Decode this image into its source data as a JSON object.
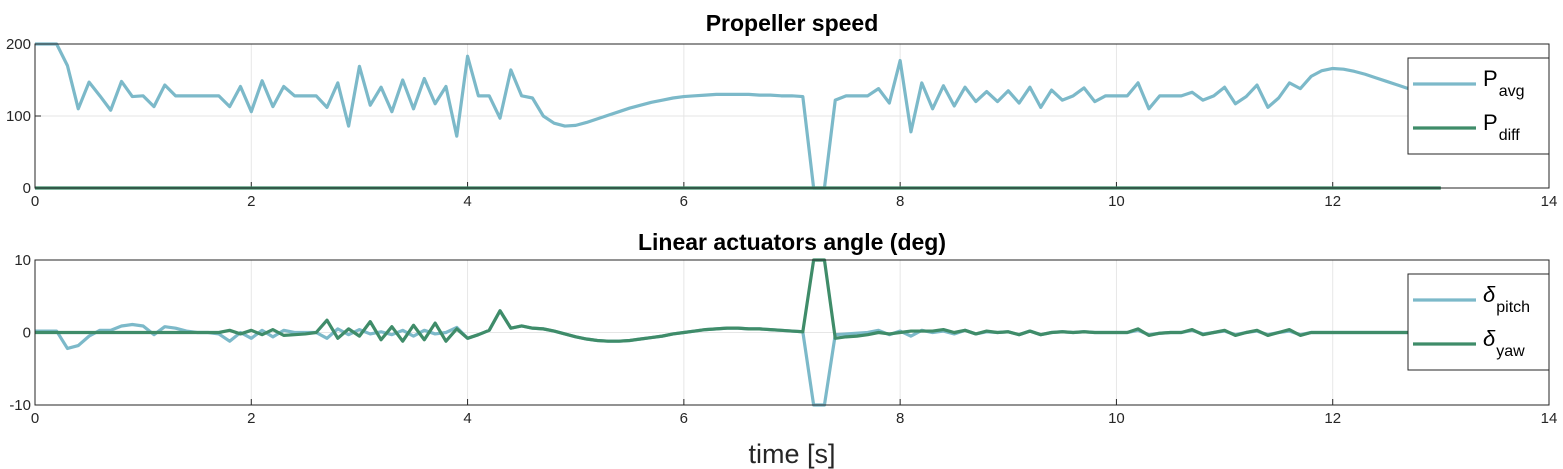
{
  "chart_data": [
    {
      "type": "line",
      "title": "Propeller speed",
      "legend": "northeast",
      "grid": true,
      "xlim": [
        0,
        14
      ],
      "xticks": [
        0,
        2,
        4,
        6,
        8,
        10,
        12,
        14
      ],
      "ylim": [
        0,
        200
      ],
      "yticks": [
        0,
        100,
        200
      ],
      "x": [
        0,
        0.1,
        0.2,
        0.3,
        0.4,
        0.5,
        0.6,
        0.7,
        0.8,
        0.9,
        1,
        1.1,
        1.2,
        1.3,
        1.4,
        1.5,
        1.6,
        1.7,
        1.8,
        1.9,
        2,
        2.1,
        2.2,
        2.3,
        2.4,
        2.5,
        2.6,
        2.7,
        2.8,
        2.9,
        3,
        3.1,
        3.2,
        3.3,
        3.4,
        3.5,
        3.6,
        3.7,
        3.8,
        3.9,
        4,
        4.1,
        4.2,
        4.3,
        4.4,
        4.5,
        4.6,
        4.7,
        4.8,
        4.9,
        5,
        5.1,
        5.2,
        5.3,
        5.4,
        5.5,
        5.6,
        5.7,
        5.8,
        5.9,
        6,
        6.1,
        6.2,
        6.3,
        6.4,
        6.5,
        6.6,
        6.7,
        6.8,
        6.9,
        7,
        7.1,
        7.2,
        7.3,
        7.4,
        7.5,
        7.6,
        7.7,
        7.8,
        7.9,
        8,
        8.1,
        8.2,
        8.3,
        8.4,
        8.5,
        8.6,
        8.7,
        8.8,
        8.9,
        9,
        9.1,
        9.2,
        9.3,
        9.4,
        9.5,
        9.6,
        9.7,
        9.8,
        9.9,
        10,
        10.1,
        10.2,
        10.3,
        10.4,
        10.5,
        10.6,
        10.7,
        10.8,
        10.9,
        11,
        11.1,
        11.2,
        11.3,
        11.4,
        11.5,
        11.6,
        11.7,
        11.8,
        11.9,
        12,
        12.1,
        12.2,
        12.3,
        12.4,
        12.5,
        12.6,
        12.7,
        12.8,
        12.9,
        13
      ],
      "series": [
        {
          "name": "P",
          "name_sub": "avg",
          "color": "#7cb9c9",
          "values": [
            200,
            200,
            200,
            170,
            110,
            147,
            128,
            108,
            148,
            127,
            128,
            113,
            143,
            128,
            128,
            128,
            128,
            128,
            113,
            141,
            106,
            149,
            113,
            141,
            128,
            128,
            128,
            112,
            146,
            86,
            169,
            115,
            140,
            106,
            150,
            110,
            152,
            117,
            141,
            72,
            183,
            128,
            128,
            97,
            164,
            128,
            125,
            100,
            90,
            86,
            87,
            91,
            96,
            101,
            106,
            111,
            115,
            119,
            122,
            125,
            127,
            128,
            129,
            130,
            130,
            130,
            130,
            129,
            129,
            128,
            128,
            127,
            0,
            0,
            122,
            128,
            128,
            128,
            138,
            118,
            177,
            78,
            146,
            110,
            142,
            114,
            140,
            120,
            134,
            120,
            135,
            118,
            140,
            112,
            136,
            122,
            128,
            139,
            120,
            128,
            128,
            128,
            146,
            110,
            128,
            128,
            128,
            133,
            122,
            128,
            140,
            117,
            127,
            143,
            112,
            125,
            146,
            138,
            155,
            163,
            166,
            165,
            162,
            158,
            153,
            148,
            143,
            138,
            134,
            130,
            128
          ]
        },
        {
          "name": "P",
          "name_sub": "diff",
          "color": "#3f8c69",
          "values": [
            0,
            0,
            0,
            0,
            0,
            0,
            0,
            0,
            0,
            0,
            0,
            0,
            0,
            0,
            0,
            0,
            0,
            0,
            0,
            0,
            0,
            0,
            0,
            0,
            0,
            0,
            0,
            0,
            0,
            0,
            0,
            0,
            0,
            0,
            0,
            0,
            0,
            0,
            0,
            0,
            0,
            0,
            0,
            0,
            0,
            0,
            0,
            0,
            0,
            0,
            0,
            0,
            0,
            0,
            0,
            0,
            0,
            0,
            0,
            0,
            0,
            0,
            0,
            0,
            0,
            0,
            0,
            0,
            0,
            0,
            0,
            0,
            0,
            0,
            0,
            0,
            0,
            0,
            0,
            0,
            0,
            0,
            0,
            0,
            0,
            0,
            0,
            0,
            0,
            0,
            0,
            0,
            0,
            0,
            0,
            0,
            0,
            0,
            0,
            0,
            0,
            0,
            0,
            0,
            0,
            0,
            0,
            0,
            0,
            0,
            0,
            0,
            0,
            0,
            0,
            0,
            0,
            0,
            0,
            0,
            0,
            0,
            0,
            0,
            0,
            0,
            0,
            0,
            0,
            0,
            0
          ]
        }
      ]
    },
    {
      "type": "line",
      "title": "Linear actuators angle (deg)",
      "xlabel": "time [s]",
      "legend": "northeast",
      "grid": true,
      "xlim": [
        0,
        14
      ],
      "xticks": [
        0,
        2,
        4,
        6,
        8,
        10,
        12,
        14
      ],
      "ylim": [
        -10,
        10
      ],
      "yticks": [
        -10,
        0,
        10
      ],
      "x": [
        0,
        0.1,
        0.2,
        0.3,
        0.4,
        0.5,
        0.6,
        0.7,
        0.8,
        0.9,
        1,
        1.1,
        1.2,
        1.3,
        1.4,
        1.5,
        1.6,
        1.7,
        1.8,
        1.9,
        2,
        2.1,
        2.2,
        2.3,
        2.4,
        2.5,
        2.6,
        2.7,
        2.8,
        2.9,
        3,
        3.1,
        3.2,
        3.3,
        3.4,
        3.5,
        3.6,
        3.7,
        3.8,
        3.9,
        4,
        4.1,
        4.2,
        4.3,
        4.4,
        4.5,
        4.6,
        4.7,
        4.8,
        4.9,
        5,
        5.1,
        5.2,
        5.3,
        5.4,
        5.5,
        5.6,
        5.7,
        5.8,
        5.9,
        6,
        6.1,
        6.2,
        6.3,
        6.4,
        6.5,
        6.6,
        6.7,
        6.8,
        6.9,
        7,
        7.1,
        7.2,
        7.3,
        7.4,
        7.5,
        7.6,
        7.7,
        7.8,
        7.9,
        8,
        8.1,
        8.2,
        8.3,
        8.4,
        8.5,
        8.6,
        8.7,
        8.8,
        8.9,
        9,
        9.1,
        9.2,
        9.3,
        9.4,
        9.5,
        9.6,
        9.7,
        9.8,
        9.9,
        10,
        10.1,
        10.2,
        10.3,
        10.4,
        10.5,
        10.6,
        10.7,
        10.8,
        10.9,
        11,
        11.1,
        11.2,
        11.3,
        11.4,
        11.5,
        11.6,
        11.7,
        11.8,
        11.9,
        12,
        12.1,
        12.2,
        12.3,
        12.4,
        12.5,
        12.6,
        12.7,
        12.8,
        12.9,
        13
      ],
      "series": [
        {
          "name": "δ",
          "name_sub": "pitch",
          "color": "#7cb9c9",
          "values": [
            0.2,
            0.2,
            0.2,
            -2.2,
            -1.8,
            -0.5,
            0.3,
            0.3,
            0.9,
            1.1,
            0.9,
            -0.3,
            0.8,
            0.6,
            0.2,
            0,
            0,
            -0.2,
            -1.2,
            0,
            -0.8,
            0.3,
            -0.6,
            0.3,
            0,
            0,
            0,
            -0.8,
            0.5,
            -0.3,
            0.4,
            -0.2,
            0.1,
            -0.3,
            0.3,
            -0.5,
            0.3,
            -0.2,
            0,
            0.7,
            -0.8,
            -0.3,
            0.3,
            3.0,
            0.6,
            0.9,
            0.6,
            0.5,
            0.2,
            -0.2,
            -0.6,
            -0.9,
            -1.1,
            -1.2,
            -1.2,
            -1.1,
            -0.9,
            -0.7,
            -0.5,
            -0.2,
            0,
            0.2,
            0.4,
            0.5,
            0.6,
            0.6,
            0.5,
            0.5,
            0.4,
            0.3,
            0.2,
            0.1,
            -10,
            -10,
            -0.3,
            -0.2,
            -0.1,
            0,
            0.3,
            -0.3,
            0.2,
            -0.5,
            0.3,
            0,
            0.2,
            -0.2,
            0.3,
            -0.2,
            0.1,
            0,
            0.1,
            -0.3,
            0.2,
            -0.3,
            0,
            0.1,
            0,
            0.1,
            0,
            0,
            0,
            0,
            0.3,
            -0.3,
            -0.1,
            0,
            0,
            0.3,
            -0.2,
            0,
            0.2,
            -0.3,
            0,
            0.2,
            -0.3,
            0,
            0.2,
            -0.3,
            0,
            0,
            0,
            0,
            0,
            0,
            0,
            0,
            0,
            0,
            0,
            0,
            0
          ]
        },
        {
          "name": "δ",
          "name_sub": "yaw",
          "color": "#3f8c69",
          "values": [
            0,
            0,
            0,
            0,
            0,
            0,
            0,
            0,
            0,
            0,
            0,
            0,
            0,
            0,
            0,
            0,
            0,
            0,
            0.3,
            -0.2,
            0.3,
            -0.3,
            0.4,
            -0.4,
            -0.3,
            -0.2,
            0,
            1.7,
            -0.8,
            0.5,
            -0.5,
            1.5,
            -1.0,
            0.8,
            -1.2,
            1.0,
            -1.0,
            1.3,
            -1.2,
            0.5,
            -0.8,
            -0.3,
            0.3,
            3.0,
            0.6,
            0.9,
            0.6,
            0.5,
            0.2,
            -0.2,
            -0.6,
            -0.9,
            -1.1,
            -1.2,
            -1.2,
            -1.1,
            -0.9,
            -0.7,
            -0.5,
            -0.2,
            0,
            0.2,
            0.4,
            0.5,
            0.6,
            0.6,
            0.5,
            0.5,
            0.4,
            0.3,
            0.2,
            0.1,
            10,
            10,
            -0.8,
            -0.6,
            -0.5,
            -0.3,
            0,
            -0.2,
            0,
            0.2,
            0.2,
            0.2,
            0.4,
            0,
            0.3,
            -0.2,
            0.2,
            0,
            0.1,
            -0.3,
            0.2,
            -0.3,
            0,
            0.1,
            0,
            0.1,
            0,
            0,
            0,
            0,
            0.5,
            -0.4,
            -0.1,
            0,
            0,
            0.4,
            -0.3,
            0,
            0.3,
            -0.4,
            0,
            0.3,
            -0.4,
            0,
            0.4,
            -0.4,
            0,
            0,
            0,
            0,
            0,
            0,
            0,
            0,
            0,
            0,
            0,
            0,
            0
          ]
        }
      ]
    }
  ]
}
